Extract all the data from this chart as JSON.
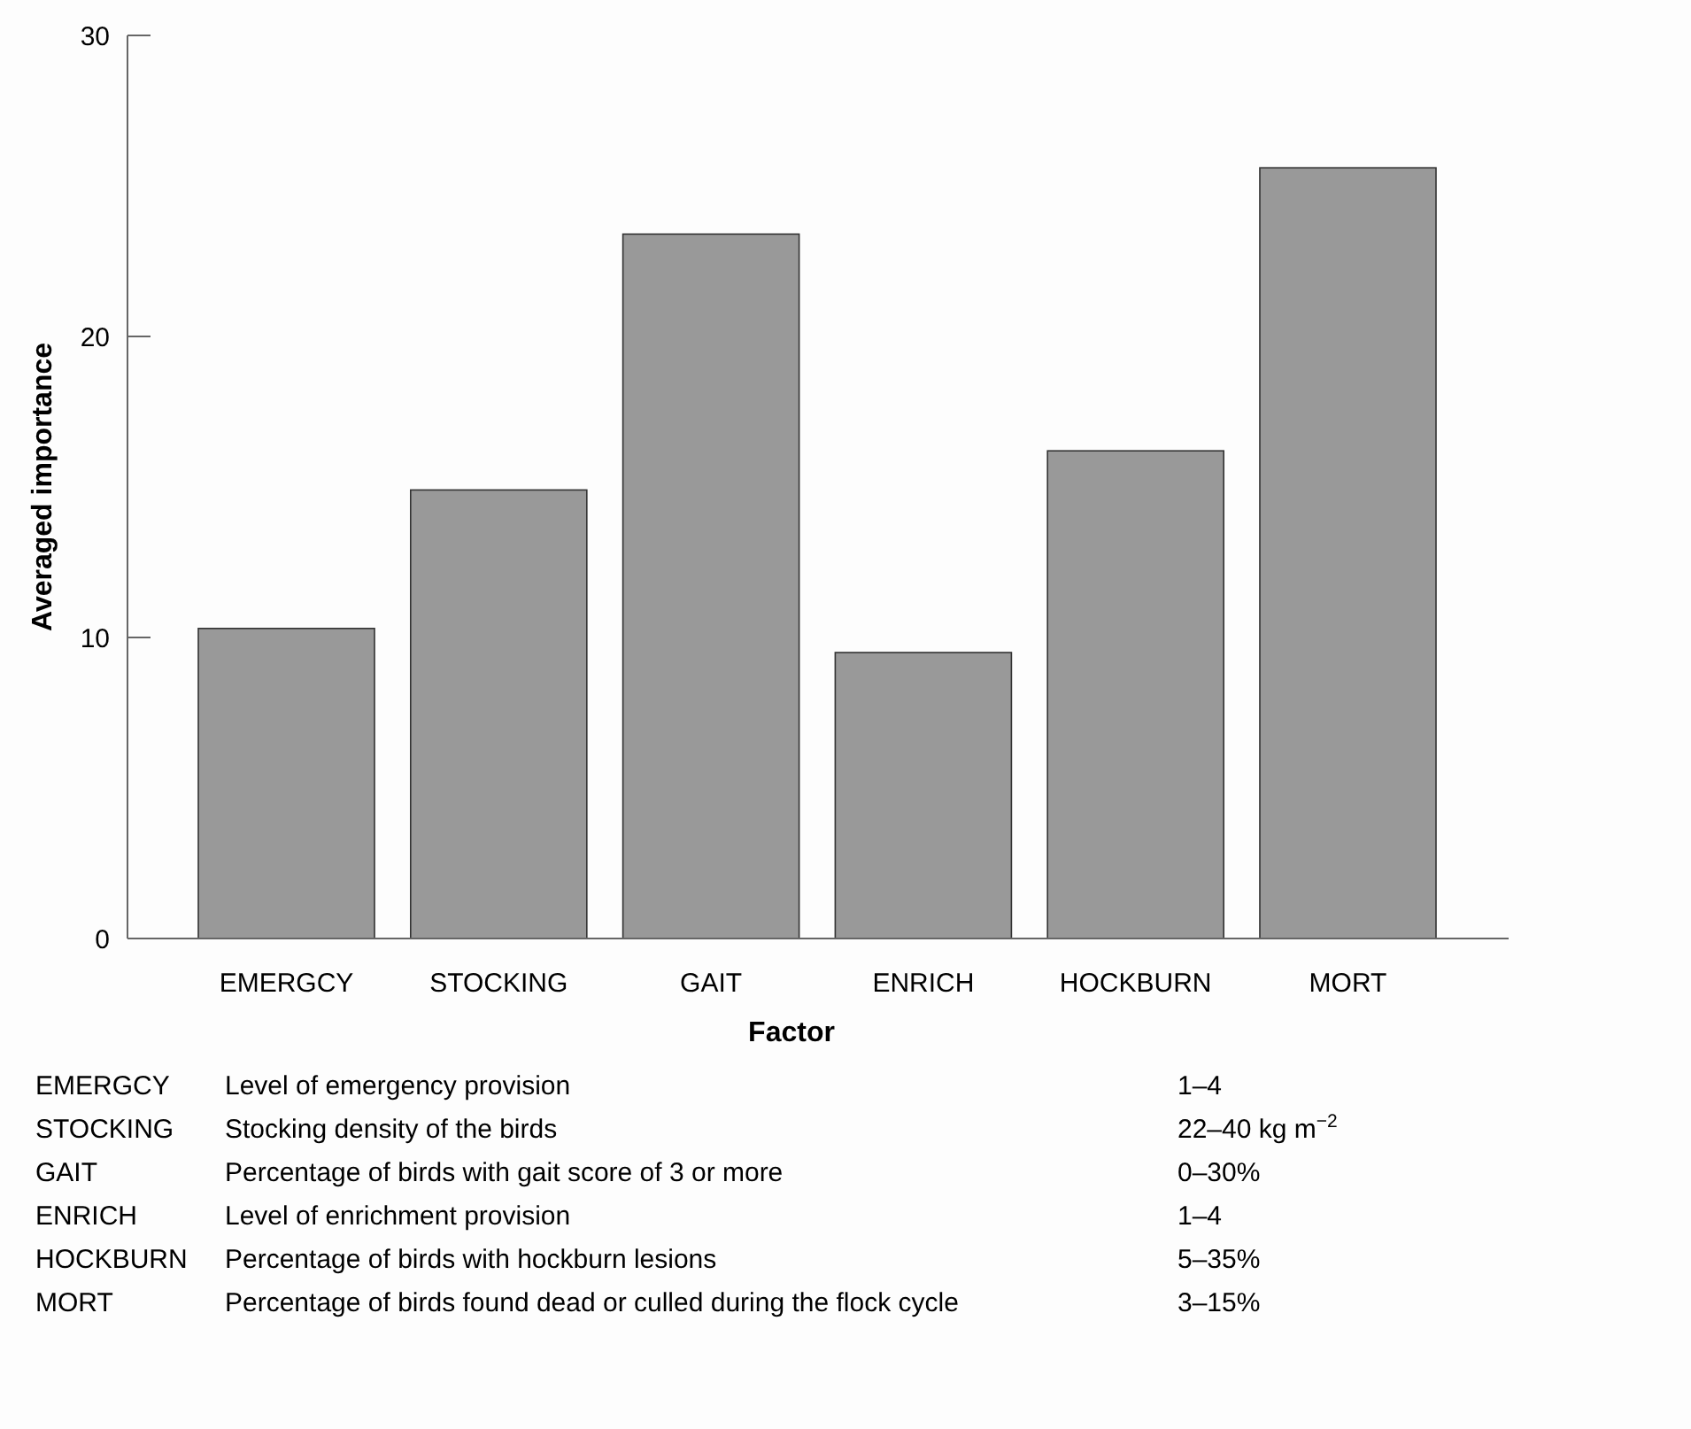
{
  "chart_data": {
    "type": "bar",
    "xlabel": "Factor",
    "ylabel": "Averaged importance",
    "categories": [
      "EMERGCY",
      "STOCKING",
      "GAIT",
      "ENRICH",
      "HOCKBURN",
      "MORT"
    ],
    "values": [
      10.3,
      14.9,
      23.4,
      9.5,
      16.2,
      25.6
    ],
    "color": "#999999",
    "ylim": [
      0,
      30
    ],
    "yticks": [
      0,
      10,
      20,
      30
    ],
    "grid": false,
    "annotations": [
      "EMERGCY",
      "Level of emergency provision",
      "1–4",
      "STOCKING",
      "Stocking density of the birds",
      "22–40 kg m$^{−2}$",
      "GAIT",
      "Percentage of birds with gait score of 3 or more",
      "0–30%",
      "ENRICH",
      "Level of enrichment provision",
      "1–4",
      "HOCKBURN",
      "Percentage of birds with hockburn lesions",
      "5–35%",
      "MORT",
      "Percentage of birds found dead or culled during the flock cycle",
      "3–15%"
    ]
  }
}
